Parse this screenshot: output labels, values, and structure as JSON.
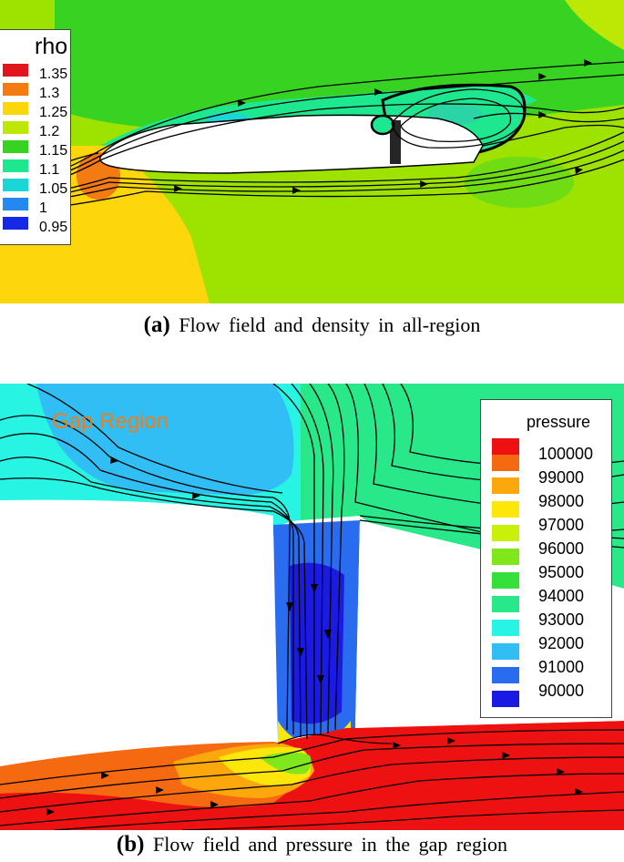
{
  "panel_a": {
    "legend": {
      "title": "rho",
      "levels": [
        {
          "label": "1.35",
          "color": "#e0161c"
        },
        {
          "label": "1.3",
          "color": "#f47a12"
        },
        {
          "label": "1.25",
          "color": "#fdd60b"
        },
        {
          "label": "1.2",
          "color": "#bde705"
        },
        {
          "label": "1.15",
          "color": "#38d223"
        },
        {
          "label": "1.1",
          "color": "#1ee88f"
        },
        {
          "label": "1.05",
          "color": "#1ad6d6"
        },
        {
          "label": "1",
          "color": "#2588f0"
        },
        {
          "label": "0.95",
          "color": "#1428e6"
        }
      ]
    },
    "caption_letter": "(a)",
    "caption_text": "Flow field and density in all-region"
  },
  "panel_b": {
    "region_label": "Gap Region",
    "legend": {
      "title": "pressure",
      "levels": [
        {
          "label": "",
          "color": "#ee1111"
        },
        {
          "label": "100000",
          "color": "#f56a10"
        },
        {
          "label": "99000",
          "color": "#fca80c"
        },
        {
          "label": "98000",
          "color": "#fde60a"
        },
        {
          "label": "97000",
          "color": "#c8f00a"
        },
        {
          "label": "96000",
          "color": "#80e81a"
        },
        {
          "label": "95000",
          "color": "#36e03a"
        },
        {
          "label": "94000",
          "color": "#28e88a"
        },
        {
          "label": "93000",
          "color": "#28f4e4"
        },
        {
          "label": "92000",
          "color": "#30bef4"
        },
        {
          "label": "91000",
          "color": "#2a6cf0"
        },
        {
          "label": "90000",
          "color": "#1a1ae4"
        }
      ]
    },
    "caption_letter": "(b)",
    "caption_text": "Flow field and pressure in the gap region"
  }
}
